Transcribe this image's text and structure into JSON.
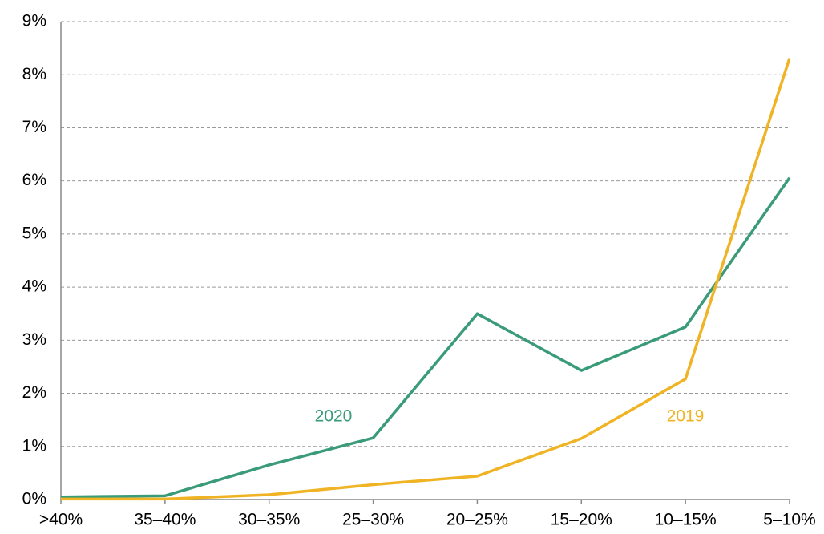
{
  "chart_data": {
    "type": "line",
    "categories": [
      ">40%",
      "35–40%",
      "30–35%",
      "25–30%",
      "20–25%",
      "15–20%",
      "10–15%",
      "5–10%"
    ],
    "series": [
      {
        "name": "2020",
        "color": "#3a9b78",
        "values": [
          0.05,
          0.07,
          0.65,
          1.16,
          3.5,
          2.43,
          3.25,
          6.06
        ]
      },
      {
        "name": "2019",
        "color": "#f0b323",
        "values": [
          0.01,
          0.01,
          0.09,
          0.28,
          0.44,
          1.15,
          2.27,
          8.31
        ]
      }
    ],
    "ylim": [
      0,
      9
    ],
    "yticks": [
      {
        "value": 0,
        "label": "0%"
      },
      {
        "value": 1,
        "label": "1%"
      },
      {
        "value": 2,
        "label": "2%"
      },
      {
        "value": 3,
        "label": "3%"
      },
      {
        "value": 4,
        "label": "4%"
      },
      {
        "value": 5,
        "label": "5%"
      },
      {
        "value": 6,
        "label": "6%"
      },
      {
        "value": 7,
        "label": "7%"
      },
      {
        "value": 8,
        "label": "8%"
      },
      {
        "value": 9,
        "label": "9%"
      }
    ],
    "grid": true
  }
}
